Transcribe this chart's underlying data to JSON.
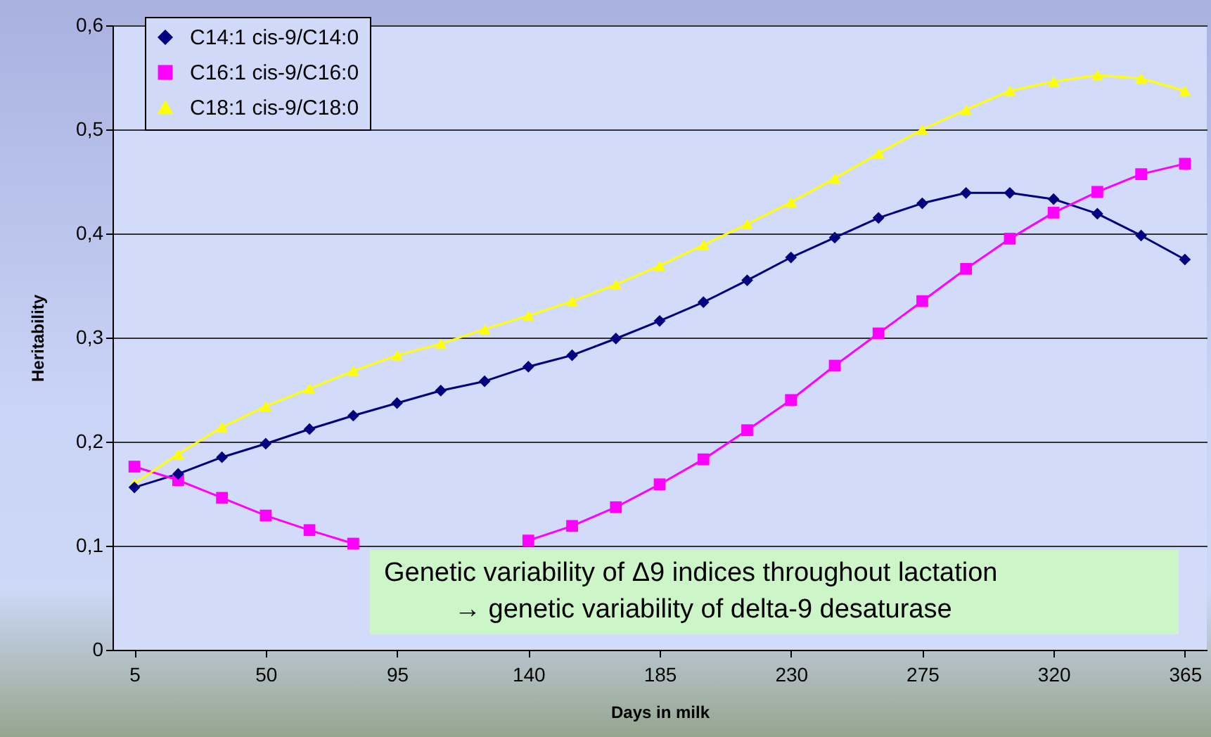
{
  "chart_data": {
    "type": "line",
    "xlabel": "Days in milk",
    "ylabel": "Heritability",
    "x": [
      5,
      20,
      35,
      50,
      65,
      80,
      95,
      110,
      125,
      140,
      155,
      170,
      185,
      200,
      215,
      230,
      245,
      260,
      275,
      290,
      305,
      320,
      335,
      350,
      365
    ],
    "xlim": [
      -2.5,
      372.5
    ],
    "xticks": [
      5,
      50,
      95,
      140,
      185,
      230,
      275,
      320,
      365
    ],
    "ylim": [
      0,
      0.6
    ],
    "yticks": [
      {
        "value": 0,
        "label": "0"
      },
      {
        "value": 0.1,
        "label": "0,1"
      },
      {
        "value": 0.2,
        "label": "0,2"
      },
      {
        "value": 0.3,
        "label": "0,3"
      },
      {
        "value": 0.4,
        "label": "0,4"
      },
      {
        "value": 0.5,
        "label": "0,5"
      },
      {
        "value": 0.6,
        "label": "0,6"
      }
    ],
    "grid": "y",
    "legend": "top left",
    "line_style": "solid",
    "series": [
      {
        "name": "C14:1 cis-9/C14:0",
        "color": "#000080",
        "marker": "diamond",
        "values": [
          0.156,
          0.169,
          0.185,
          0.198,
          0.212,
          0.225,
          0.237,
          0.249,
          0.258,
          0.272,
          0.283,
          0.299,
          0.316,
          0.334,
          0.355,
          0.377,
          0.396,
          0.415,
          0.429,
          0.439,
          0.439,
          0.433,
          0.419,
          0.398,
          0.375
        ]
      },
      {
        "name": "C16:1 cis-9/C16:0",
        "color": "#ff00ff",
        "marker": "square",
        "values": [
          0.176,
          0.163,
          0.146,
          0.129,
          0.115,
          0.102,
          null,
          null,
          null,
          0.105,
          0.119,
          0.137,
          0.159,
          0.183,
          0.211,
          0.24,
          0.273,
          0.304,
          0.335,
          0.366,
          0.395,
          0.42,
          0.44,
          0.457,
          0.467
        ]
      },
      {
        "name": "C18:1 cis-9/C18:0",
        "color": "#ffff00",
        "marker": "triangle",
        "values": [
          0.16,
          0.188,
          0.214,
          0.234,
          0.251,
          0.268,
          0.283,
          0.294,
          0.308,
          0.321,
          0.335,
          0.351,
          0.369,
          0.389,
          0.409,
          0.43,
          0.453,
          0.477,
          0.5,
          0.519,
          0.537,
          0.546,
          0.552,
          0.549,
          0.537
        ]
      }
    ],
    "annotations": [
      "Genetic variability of Δ9 indices throughout lactation",
      "→ genetic variability of delta-9 desaturase"
    ]
  }
}
